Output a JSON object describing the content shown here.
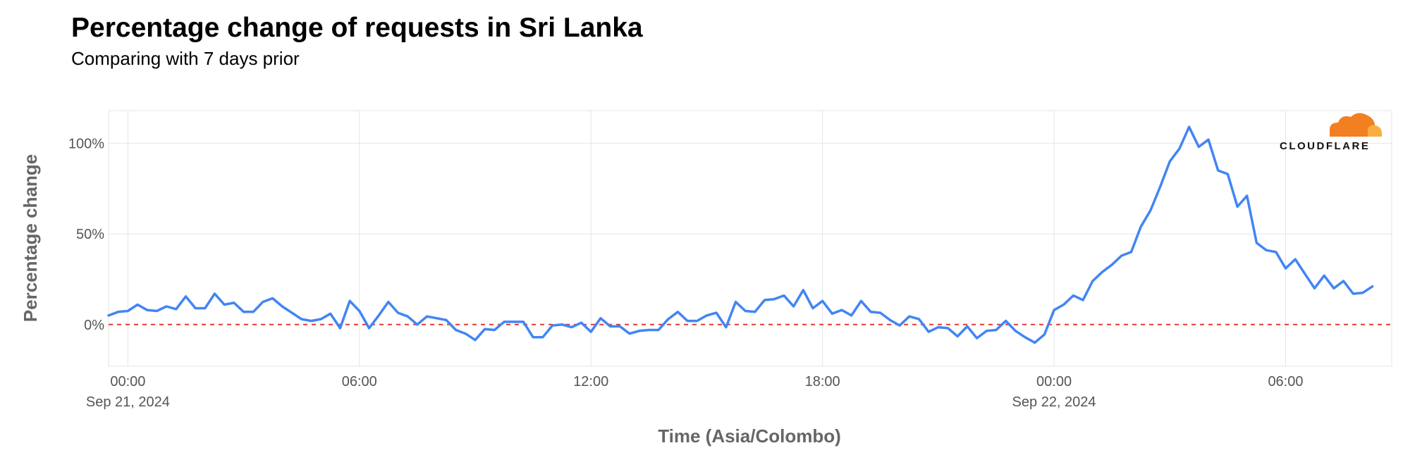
{
  "title": "Percentage change of requests in Sri Lanka",
  "subtitle": "Comparing with 7 days prior",
  "logo": {
    "text": "CLOUDFLARE",
    "icon": "cloudflare-cloud-icon",
    "colors": [
      "#F38020",
      "#FAAE40"
    ]
  },
  "colors": {
    "line": "#4285F4",
    "reference": "#E53935",
    "grid": "#E5E5E5",
    "axis_text": "#555555",
    "axis_title": "#666666"
  },
  "chart_data": {
    "type": "line",
    "title": "Percentage change of requests in Sri Lanka",
    "subtitle": "Comparing with 7 days prior",
    "xlabel": "Time (Asia/Colombo)",
    "ylabel": "Percentage change",
    "x_range": [
      "2024-09-20 23:30",
      "2024-09-22 08:45"
    ],
    "ylim": [
      -23,
      118
    ],
    "x_ticks": [
      {
        "x": "2024-09-21 00:00",
        "label": "00:00",
        "sublabel": "Sep 21, 2024"
      },
      {
        "x": "2024-09-21 06:00",
        "label": "06:00",
        "sublabel": ""
      },
      {
        "x": "2024-09-21 12:00",
        "label": "12:00",
        "sublabel": ""
      },
      {
        "x": "2024-09-21 18:00",
        "label": "18:00",
        "sublabel": ""
      },
      {
        "x": "2024-09-22 00:00",
        "label": "00:00",
        "sublabel": "Sep 22, 2024"
      },
      {
        "x": "2024-09-22 06:00",
        "label": "06:00",
        "sublabel": ""
      }
    ],
    "y_ticks": [
      {
        "value": 0,
        "label": "0%"
      },
      {
        "value": 50,
        "label": "50%"
      },
      {
        "value": 100,
        "label": "100%"
      }
    ],
    "reference_line": {
      "value": 0,
      "style": "dashed"
    },
    "grid": true,
    "series": [
      {
        "x_start": "2024-09-20 23:30",
        "interval_minutes": 15,
        "values": [
          5,
          7,
          7.5,
          11,
          8,
          7.5,
          10,
          8.5,
          15.5,
          9,
          9,
          17,
          11,
          12,
          7,
          7,
          12.5,
          14.5,
          10,
          6.5,
          3,
          2,
          3,
          6,
          -2,
          13,
          7.5,
          -2,
          5,
          12.5,
          6.5,
          4.5,
          0,
          4.5,
          3.5,
          2.5,
          -3,
          -5,
          -8.5,
          -2.5,
          -3,
          1.5,
          1.5,
          1.5,
          -7,
          -7,
          -0.5,
          0,
          -1.5,
          1,
          -4,
          3.5,
          -1,
          -1,
          -5,
          -3.5,
          -3,
          -3,
          3,
          7,
          2,
          2,
          5,
          6.5,
          -1.5,
          12.5,
          7.5,
          7,
          13.5,
          14,
          16,
          10,
          19,
          9,
          13,
          6,
          8,
          5,
          13,
          7,
          6.5,
          2.5,
          -0.5,
          4.5,
          3,
          -4,
          -1.5,
          -2,
          -6.5,
          -1,
          -7.5,
          -3.5,
          -3,
          2,
          -3.5,
          -7,
          -10,
          -5.5,
          8,
          11,
          16,
          13.5,
          24,
          29,
          33,
          38,
          40,
          54,
          63,
          76,
          90,
          97,
          109,
          98,
          102,
          85,
          83,
          65,
          71,
          45,
          41,
          40,
          31,
          36,
          28,
          20,
          27,
          20,
          24,
          17,
          17.5,
          21
        ]
      }
    ]
  }
}
